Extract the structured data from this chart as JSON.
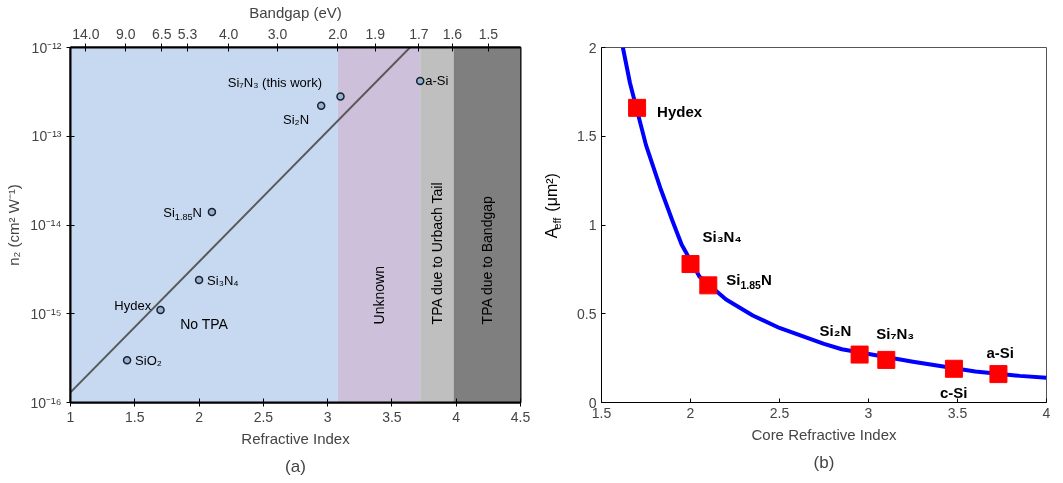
{
  "chart_data": [
    {
      "type": "scatter",
      "xlabel": "Refractive Index",
      "ylabel": "n₂ (cm² W⁻¹)",
      "x2label": "Bandgap (eV)",
      "log": "y",
      "grid": false,
      "xlim": [
        1,
        4.5
      ],
      "xticks": [
        1,
        1.5,
        2,
        2.5,
        3,
        3.5,
        4,
        4.5
      ],
      "ylim": [
        1e-16,
        1e-12
      ],
      "yticks": [
        {
          "value": 1e-16,
          "label": "10⁻¹⁶"
        },
        {
          "value": 1e-15,
          "label": "10⁻¹⁵"
        },
        {
          "value": 1e-14,
          "label": "10⁻¹⁴"
        },
        {
          "value": 1e-13,
          "label": "10⁻¹³"
        },
        {
          "value": 1e-12,
          "label": "10⁻¹²"
        }
      ],
      "bands": [
        {
          "axis": "x",
          "from": 1,
          "to": 3.08,
          "label": "No TPA",
          "color": "#c6d9f1"
        },
        {
          "axis": "x",
          "from": 3.08,
          "to": 3.72,
          "label": "Unknown",
          "color": "#ccc0da"
        },
        {
          "axis": "x",
          "from": 3.72,
          "to": 3.98,
          "label": "TPA due to Urbach Tail",
          "color": "#bfbfbf"
        },
        {
          "axis": "x",
          "from": 3.98,
          "to": 4.5,
          "label": "TPA due to Bandgap",
          "color": "#7f7f7f"
        }
      ],
      "series": [
        {
          "type": "scatter",
          "marker": "circle",
          "color": "#8db4e2",
          "x": [
            1.44,
            1.7,
            2.0,
            2.1,
            2.95,
            3.1,
            3.72
          ],
          "values": [
            3e-16,
            1.1e-15,
            2.4e-15,
            1.4e-14,
            2.2e-13,
            2.8e-13,
            4.2e-13
          ]
        },
        {
          "type": "line",
          "color": "#595959",
          "x": [
            1,
            3.64
          ],
          "values": [
            1.3e-16,
            1e-12
          ]
        }
      ],
      "annotations": [
        {
          "text": "SiO₂",
          "x": 1.44,
          "y": 3e-16
        },
        {
          "text": "Hydex",
          "x": 1.7,
          "y": 1.1e-15
        },
        {
          "text": "Si₃N₄",
          "x": 2.0,
          "y": 2.4e-15
        },
        {
          "text": "Si$_{1.85}$N",
          "x": 2.1,
          "y": 1.4e-14
        },
        {
          "text": "Si₂N",
          "x": 2.95,
          "y": 2.2e-13
        },
        {
          "text": "Si₇N₃ (this work)",
          "x": 3.1,
          "y": 2.8e-13
        },
        {
          "text": "a-Si",
          "x": 3.72,
          "y": 4.2e-13
        },
        {
          "text": "14.0",
          "x": 1.12,
          "y": 1e-12
        },
        {
          "text": "9.0",
          "x": 1.43,
          "y": 1e-12
        },
        {
          "text": "6.5",
          "x": 1.71,
          "y": 1e-12
        },
        {
          "text": "5.3",
          "x": 1.91,
          "y": 1e-12
        },
        {
          "text": "4.0",
          "x": 2.23,
          "y": 1e-12
        },
        {
          "text": "3.0",
          "x": 2.61,
          "y": 1e-12
        },
        {
          "text": "2.0",
          "x": 3.08,
          "y": 1e-12
        },
        {
          "text": "1.9",
          "x": 3.37,
          "y": 1e-12
        },
        {
          "text": "1.7",
          "x": 3.71,
          "y": 1e-12
        },
        {
          "text": "1.6",
          "x": 3.97,
          "y": 1e-12
        },
        {
          "text": "1.5",
          "x": 4.25,
          "y": 1e-12
        },
        "(a)"
      ]
    },
    {
      "type": "scatter",
      "xlabel": "Core Refractive Index",
      "ylabel": "A$_{eff}$ (μm²)",
      "grid": false,
      "xlim": [
        1.5,
        4
      ],
      "xticks": [
        1.5,
        2,
        2.5,
        3,
        3.5,
        4
      ],
      "ylim": [
        0,
        2
      ],
      "yticks": [
        0,
        0.5,
        1,
        1.5,
        2
      ],
      "series": [
        {
          "type": "line",
          "color": "#0000ff",
          "x": [
            1.62,
            1.66,
            1.75,
            1.83,
            1.9,
            1.95,
            2.05,
            2.2,
            2.35,
            2.5,
            2.75,
            2.85,
            3.25,
            3.6,
            3.85,
            4.0
          ],
          "values": [
            2.0,
            1.8,
            1.45,
            1.21,
            1.02,
            0.89,
            0.71,
            0.58,
            0.49,
            0.42,
            0.33,
            0.3,
            0.23,
            0.175,
            0.15,
            0.14
          ]
        },
        {
          "type": "scatter",
          "marker": "square",
          "color": "#ff0000",
          "x": [
            1.7,
            2.0,
            2.1,
            2.95,
            3.1,
            3.48,
            3.73
          ],
          "values": [
            1.66,
            0.78,
            0.66,
            0.27,
            0.24,
            0.19,
            0.16
          ]
        }
      ],
      "annotations": [
        {
          "text": "Hydex",
          "x": 1.7,
          "y": 1.66
        },
        {
          "text": "Si₃N₄",
          "x": 2.0,
          "y": 0.78
        },
        {
          "text": "Si$_{1.85}$N",
          "x": 2.1,
          "y": 0.66
        },
        {
          "text": "Si₂N",
          "x": 2.95,
          "y": 0.27
        },
        {
          "text": "Si₇N₃",
          "x": 3.1,
          "y": 0.24
        },
        {
          "text": "c-Si",
          "x": 3.48,
          "y": 0.19
        },
        {
          "text": "a-Si",
          "x": 3.73,
          "y": 0.16
        },
        "(b)"
      ]
    }
  ]
}
